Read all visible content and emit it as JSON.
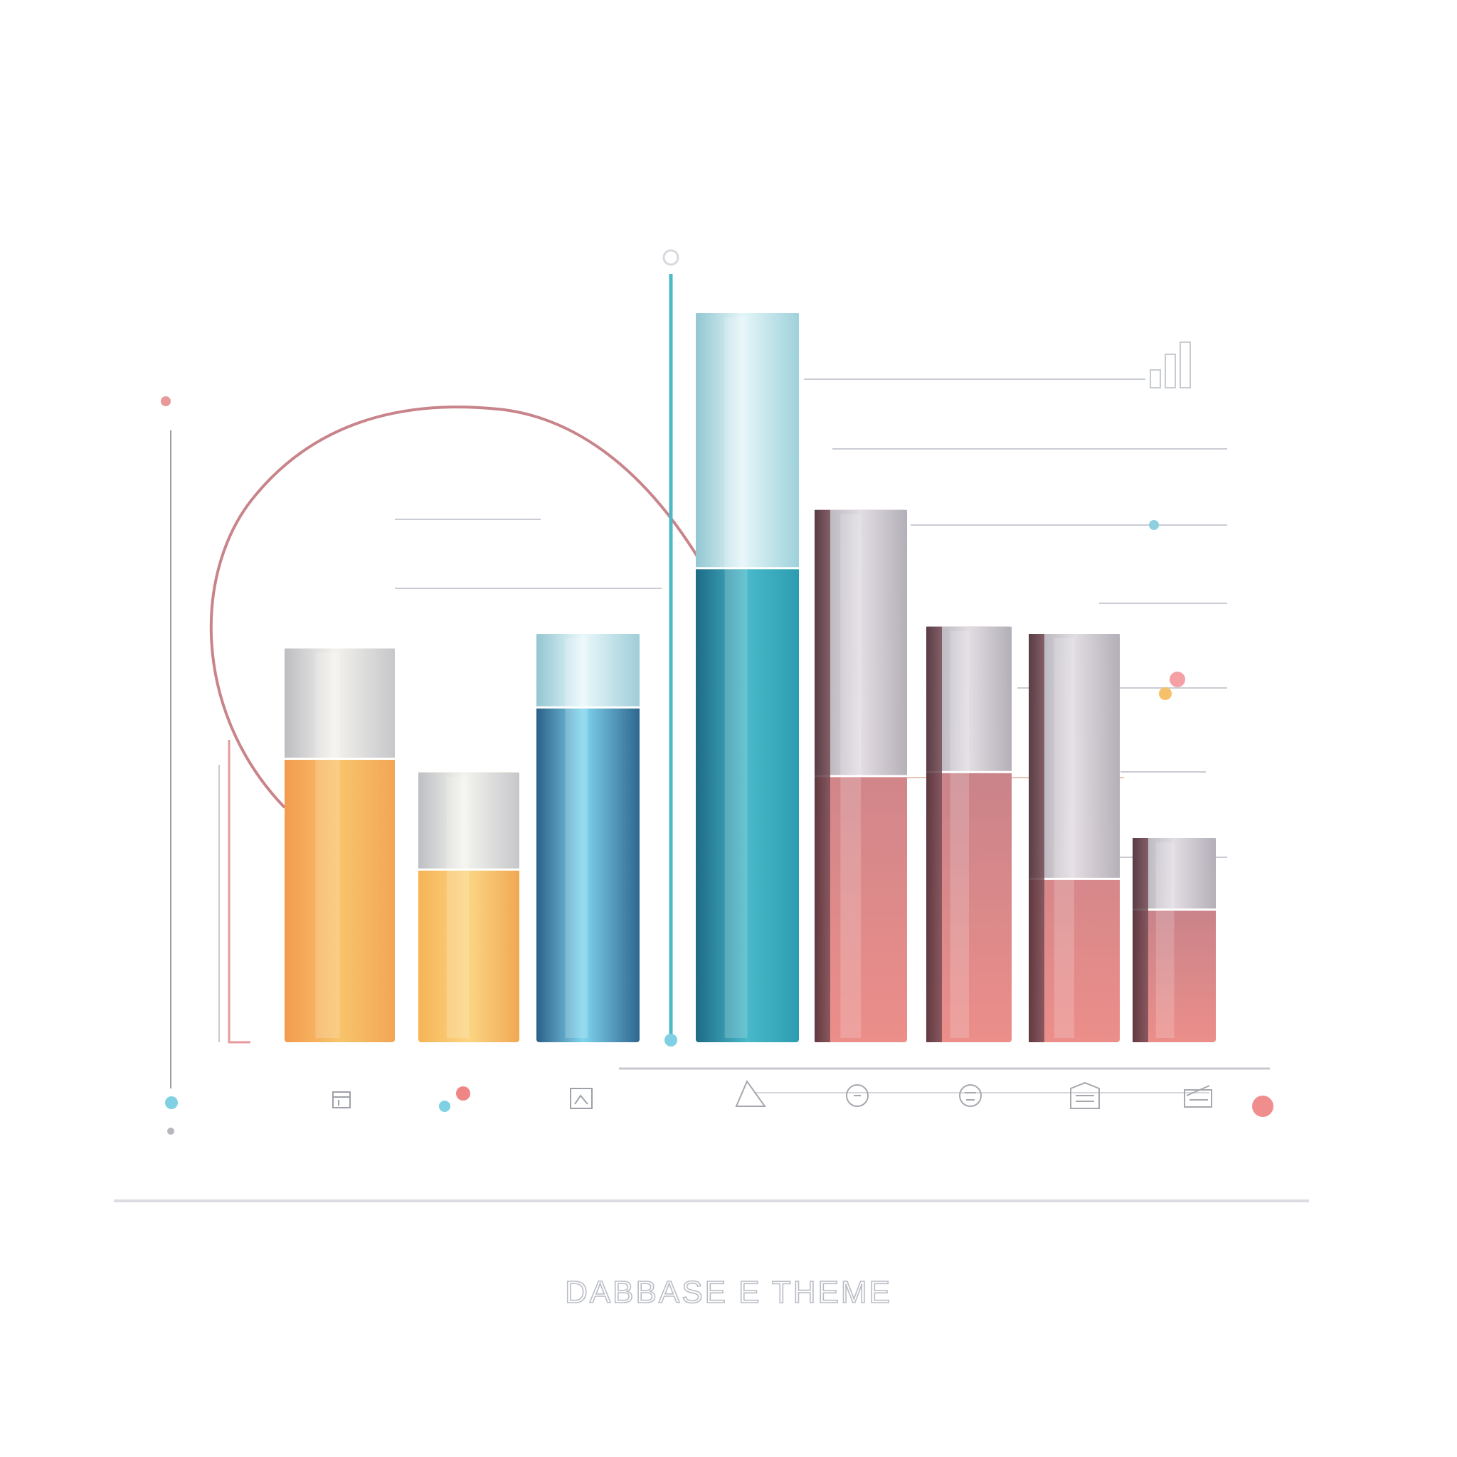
{
  "chart_data": {
    "type": "bar",
    "title": "",
    "xlabel": "",
    "ylabel": "",
    "ylim": [
      0,
      100
    ],
    "grid": false,
    "legend": "none",
    "categories": [
      "",
      "",
      "",
      "",
      "",
      "",
      "",
      ""
    ],
    "series": [
      {
        "values": [
          54,
          37,
          56,
          100,
          73,
          57,
          56,
          28
        ]
      }
    ],
    "bar_colors": [
      "#f5a85a",
      "#f7c36a",
      "#3f86b0",
      "#2a9bb0",
      "#d88590",
      "#d88592",
      "#d8909c",
      "#cf8a9a"
    ],
    "caption": "DABBASE E THEME"
  }
}
